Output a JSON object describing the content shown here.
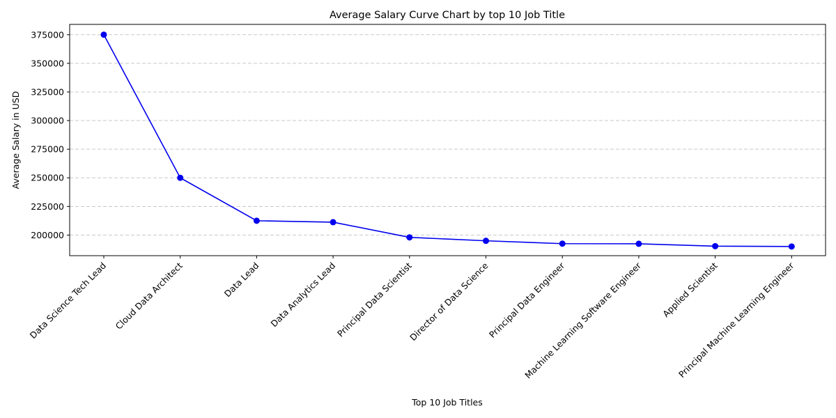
{
  "chart_data": {
    "type": "line",
    "title": "Average Salary Curve Chart by top 10 Job Title",
    "xlabel": "Top 10 Job Titles",
    "ylabel": "Average Salary in USD",
    "categories": [
      "Data Science Tech Lead",
      "Cloud Data Architect",
      "Data Lead",
      "Data Analytics Lead",
      "Principal Data Scientist",
      "Director of Data Science",
      "Principal Data Engineer",
      "Machine Learning Software Engineer",
      "Applied Scientist",
      "Principal Machine Learning Engineer"
    ],
    "values": [
      375000,
      250000,
      212500,
      211250,
      198000,
      195000,
      192500,
      192400,
      190300,
      190000
    ],
    "ylim": [
      182000,
      384000
    ],
    "yticks": [
      200000,
      225000,
      250000,
      275000,
      300000,
      325000,
      350000,
      375000
    ],
    "grid": "y-dashed",
    "color": "#0000ee"
  }
}
